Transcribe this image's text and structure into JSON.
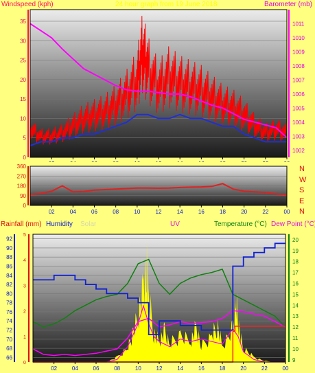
{
  "header": {
    "left_label": "Windspeed (kph)",
    "center_label": "24 hour graph from 19 June 2018",
    "right_label": "Barometer (mb)"
  },
  "colors": {
    "background": "#ffff80",
    "windspeed_gust": "#ff0000",
    "windspeed_avg": "#1f2fd8",
    "barometer": "#ff00ff",
    "direction": "#e02020",
    "rain": "#ff2020",
    "humidity": "#1020d0",
    "solar": "#ffff00",
    "uv": "#ff00ff",
    "temperature": "#108010",
    "dewpoint": "#ff00ff"
  },
  "panel2": {
    "compass_labels": [
      "N",
      "W",
      "S",
      "E",
      "N"
    ]
  },
  "panel3": {
    "labels": {
      "rainfall": "Rainfall (mm)",
      "humidity": "Humidity",
      "solar": "Solar",
      "uv": "UV",
      "temperature": "Temperature (°C)",
      "dewpoint": "Dew Point (°C)"
    }
  },
  "chart_data": [
    {
      "type": "line",
      "x_ticks": [
        "02",
        "04",
        "06",
        "08",
        "10",
        "12",
        "14",
        "16",
        "18",
        "20",
        "22",
        "00"
      ],
      "y_left": {
        "label": "Windspeed (kph)",
        "ticks": [
          0,
          5,
          10,
          15,
          20,
          25,
          30,
          35
        ],
        "ylim": [
          0,
          38
        ]
      },
      "y_right": {
        "label": "Barometer (mb)",
        "ticks": [
          1002,
          1003,
          1004,
          1005,
          1006,
          1007,
          1008,
          1009,
          1010,
          1011
        ],
        "ylim": [
          1001.5,
          1012
        ]
      },
      "series": [
        {
          "name": "Gust",
          "axis": "left",
          "x": [
            0,
            1,
            2,
            3,
            4,
            5,
            6,
            7,
            8,
            9,
            10,
            10.5,
            11,
            12,
            13,
            14,
            15,
            16,
            17,
            18,
            19,
            20,
            21,
            22,
            23,
            24
          ],
          "values": [
            8,
            6,
            6,
            7,
            9,
            11,
            12,
            13,
            15,
            18,
            22,
            30,
            25,
            20,
            23,
            21,
            20,
            19,
            17,
            15,
            14,
            12,
            9,
            7,
            8,
            7
          ]
        },
        {
          "name": "Average",
          "axis": "left",
          "x": [
            0,
            1,
            2,
            3,
            4,
            5,
            6,
            7,
            8,
            9,
            10,
            11,
            12,
            13,
            14,
            15,
            16,
            17,
            18,
            19,
            20,
            21,
            22,
            23,
            24
          ],
          "values": [
            3,
            4,
            4,
            5,
            5,
            6,
            6,
            7,
            8,
            9,
            11,
            11,
            10,
            10,
            11,
            10,
            10,
            9,
            8,
            8,
            6,
            5,
            4,
            4,
            4
          ]
        },
        {
          "name": "Pressure",
          "axis": "right",
          "x": [
            0,
            1,
            2,
            3,
            4,
            5,
            6,
            7,
            8,
            9,
            10,
            11,
            12,
            13,
            14,
            15,
            16,
            17,
            18,
            19,
            20,
            21,
            22,
            23,
            24
          ],
          "values": [
            1011,
            1010.5,
            1010,
            1009.2,
            1008.5,
            1007.8,
            1007.4,
            1007,
            1006.6,
            1006.3,
            1006.2,
            1006.2,
            1006.1,
            1006,
            1006,
            1005.8,
            1005.5,
            1005.2,
            1005,
            1004.6,
            1004.2,
            1004,
            1003.8,
            1003.6,
            1002.9
          ]
        }
      ]
    },
    {
      "type": "line",
      "x_ticks": [
        "02",
        "04",
        "06",
        "08",
        "10",
        "12",
        "14",
        "16",
        "18",
        "20",
        "22",
        "00"
      ],
      "y_left": {
        "ticks": [
          0,
          90,
          180,
          270,
          360
        ],
        "ylim": [
          0,
          360
        ]
      },
      "series": [
        {
          "name": "Wind Direction",
          "x": [
            0,
            1,
            2,
            3,
            4,
            5,
            6,
            7,
            8,
            9,
            10,
            11,
            12,
            13,
            14,
            15,
            16,
            17,
            18,
            19,
            20,
            21,
            22,
            23,
            24
          ],
          "values": [
            100,
            110,
            130,
            180,
            125,
            128,
            140,
            145,
            150,
            155,
            160,
            160,
            158,
            160,
            165,
            168,
            170,
            175,
            200,
            150,
            130,
            125,
            118,
            105,
            95
          ]
        }
      ]
    },
    {
      "type": "line",
      "x_ticks": [
        "02",
        "04",
        "06",
        "08",
        "10",
        "12",
        "14",
        "16",
        "18",
        "20",
        "22",
        "00"
      ],
      "y_left": {
        "label": "Humidity",
        "ticks": [
          66,
          68,
          70,
          72,
          74,
          76,
          78,
          80,
          82,
          84,
          86,
          88,
          90,
          92
        ],
        "ylim": [
          65,
          93
        ]
      },
      "y_rain": {
        "label": "Rainfall (mm)",
        "ticks": [
          0,
          1,
          2,
          3,
          4,
          5
        ],
        "ylim": [
          0,
          5
        ]
      },
      "y_right": {
        "label": "Temperature (°C)",
        "ticks": [
          9,
          10,
          11,
          12,
          13,
          14,
          15,
          16,
          17,
          18,
          19,
          20
        ],
        "ylim": [
          8.8,
          20.5
        ]
      },
      "series": [
        {
          "name": "Humidity",
          "axis": "left",
          "x": [
            0,
            1,
            2,
            3,
            4,
            5,
            6,
            7,
            8,
            9,
            10,
            11,
            12,
            13,
            14,
            15,
            16,
            17,
            18,
            19,
            20,
            21,
            22,
            23,
            24
          ],
          "values": [
            83,
            83,
            84,
            84,
            83,
            82,
            81,
            80,
            80,
            79,
            78,
            71,
            74,
            74,
            73,
            73,
            72,
            72,
            72,
            86,
            88,
            89,
            90,
            91,
            91
          ]
        },
        {
          "name": "Temperature",
          "axis": "right",
          "x": [
            0,
            1,
            2,
            3,
            4,
            5,
            6,
            7,
            8,
            9,
            10,
            11,
            12,
            13,
            14,
            15,
            16,
            17,
            18,
            19,
            20,
            21,
            22,
            23,
            24
          ],
          "values": [
            12.5,
            12,
            12.3,
            12.8,
            13.5,
            14,
            14.5,
            14.8,
            15,
            16,
            17.8,
            18.2,
            16,
            15,
            16,
            16.5,
            16.8,
            17,
            17.3,
            15,
            14.5,
            14,
            13.5,
            13,
            12
          ]
        },
        {
          "name": "Dew Point",
          "axis": "right",
          "x": [
            0,
            1,
            2,
            3,
            4,
            5,
            6,
            7,
            8,
            9,
            10,
            11,
            12,
            13,
            14,
            15,
            16,
            17,
            18,
            19,
            20,
            21,
            22,
            23,
            24
          ],
          "values": [
            10,
            9.5,
            9.4,
            9.5,
            9.4,
            9.5,
            9.6,
            9.8,
            10,
            11,
            12.5,
            12.8,
            12,
            12.2,
            12.5,
            12.3,
            12.4,
            12.5,
            12.8,
            13.5,
            13.4,
            13.2,
            13,
            12.5,
            12
          ]
        },
        {
          "name": "Rainfall",
          "axis": "rain",
          "x": [
            0,
            18.8,
            19,
            19.2,
            20,
            21,
            22,
            23,
            24
          ],
          "values": [
            0,
            0,
            1.2,
            1.4,
            1.4,
            1.4,
            1.4,
            1.4,
            1.4
          ]
        },
        {
          "name": "UV",
          "axis": "rain",
          "x": [
            0,
            7,
            8,
            9,
            10,
            10.5,
            11,
            11.5,
            12,
            13,
            14,
            15,
            16,
            17,
            18,
            19,
            19.5,
            20,
            21,
            22,
            23,
            24
          ],
          "values": [
            0,
            0,
            0.1,
            0.6,
            1.5,
            2.2,
            1.5,
            1.0,
            0.8,
            0.6,
            0.9,
            0.8,
            0.9,
            0.8,
            0.7,
            1.3,
            1.0,
            0.4,
            0.1,
            0,
            0,
            0
          ]
        },
        {
          "name": "Solar",
          "axis": "rain",
          "x": [
            0,
            7,
            8,
            9,
            9.5,
            10,
            10.5,
            10.8,
            11,
            11.5,
            12,
            12.5,
            13,
            14,
            15,
            15.5,
            16,
            17,
            17.5,
            18,
            19,
            19.3,
            19.6,
            20,
            21,
            22,
            23,
            24
          ],
          "values": [
            0,
            0,
            0.2,
            0.6,
            1.2,
            2.0,
            3.2,
            4.1,
            2.8,
            1.2,
            0.9,
            1.3,
            0.8,
            1.1,
            0.9,
            1.5,
            0.7,
            1.1,
            1.6,
            0.7,
            1.4,
            2.6,
            1.3,
            0.6,
            0.2,
            0.05,
            0,
            0
          ]
        }
      ]
    }
  ]
}
